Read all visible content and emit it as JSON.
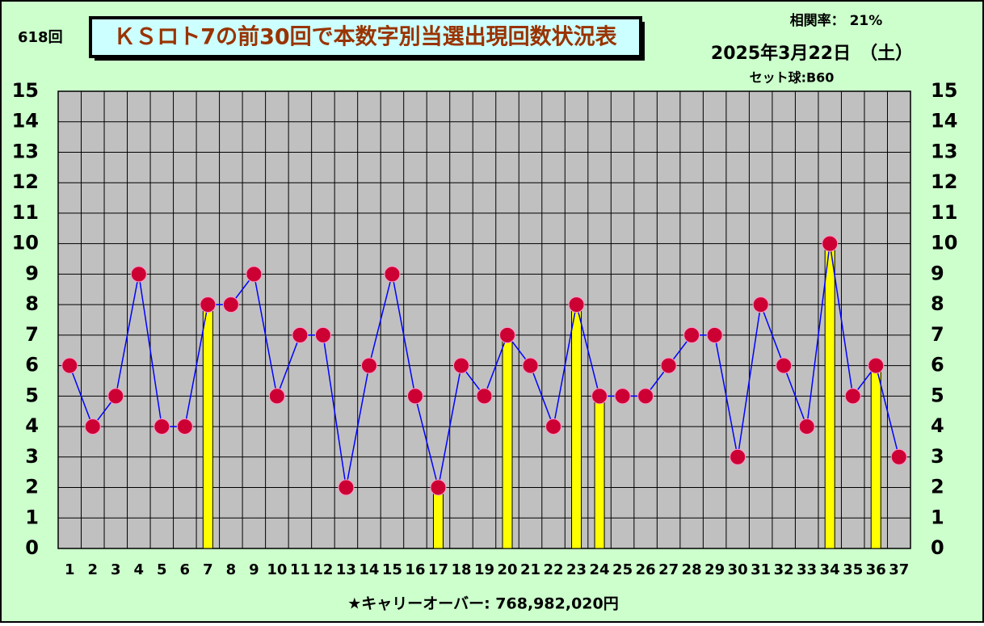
{
  "chart_data": {
    "type": "line",
    "round_label": "618回",
    "title": "ＫＳロト7の前30回で本数字別当選出現回数状況表",
    "correlation": "相関率：  21%",
    "date": "2025年3月22日　（土）",
    "set_ball": "セット球:B60",
    "footer": "★キャリーオーバー: 768,982,020円",
    "categories": [
      "1",
      "2",
      "3",
      "4",
      "5",
      "6",
      "7",
      "8",
      "9",
      "10",
      "11",
      "12",
      "13",
      "14",
      "15",
      "16",
      "17",
      "18",
      "19",
      "20",
      "21",
      "22",
      "23",
      "24",
      "25",
      "26",
      "27",
      "28",
      "29",
      "30",
      "31",
      "32",
      "33",
      "34",
      "35",
      "36",
      "37"
    ],
    "series": [
      {
        "color": "#0000ff",
        "marker_color": "#cc0033",
        "values": [
          6,
          4,
          5,
          9,
          4,
          4,
          8,
          8,
          9,
          5,
          7,
          7,
          2,
          6,
          9,
          5,
          2,
          6,
          5,
          7,
          6,
          4,
          8,
          5,
          5,
          5,
          6,
          7,
          7,
          3,
          8,
          6,
          4,
          10,
          5,
          6,
          3
        ]
      },
      {
        "type": "bar",
        "color": "#ffff00",
        "values": [
          null,
          null,
          null,
          null,
          null,
          null,
          8,
          null,
          null,
          null,
          null,
          null,
          null,
          null,
          null,
          null,
          2,
          null,
          null,
          7,
          null,
          null,
          8,
          5,
          null,
          null,
          null,
          null,
          null,
          null,
          null,
          null,
          null,
          10,
          null,
          6,
          null
        ]
      }
    ],
    "ylim": [
      0,
      15
    ],
    "yticks": [
      0,
      1,
      2,
      3,
      4,
      5,
      6,
      7,
      8,
      9,
      10,
      11,
      12,
      13,
      14,
      15
    ],
    "grid": true
  }
}
